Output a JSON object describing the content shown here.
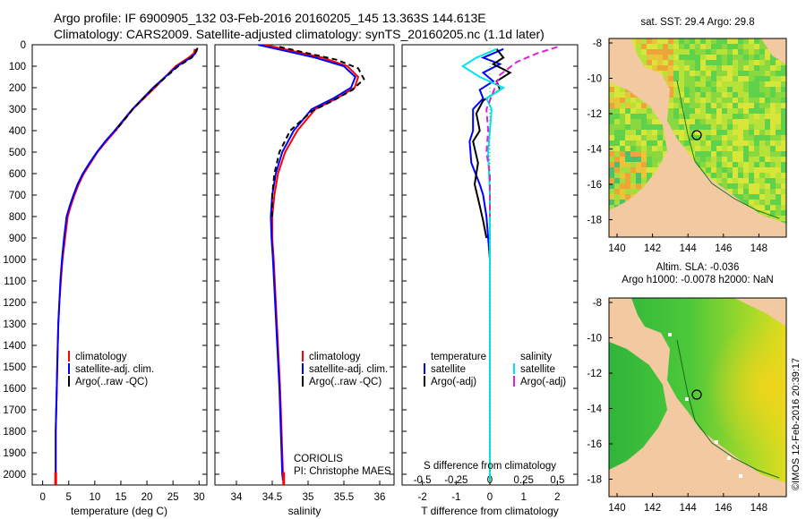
{
  "title": {
    "line1": "Argo profile: IF 6900905_132 03-Feb-2016 20160205_145 13.363S 144.613E",
    "line2": "Climatology: CARS2009. Satellite-adjusted climatology: synTS_20160205.nc (1.1d later)"
  },
  "depth_ticks": [
    0,
    100,
    200,
    300,
    400,
    500,
    600,
    700,
    800,
    900,
    1000,
    1100,
    1200,
    1300,
    1400,
    1500,
    1600,
    1700,
    1800,
    1900,
    2000
  ],
  "colors": {
    "climatology": "#ff0000",
    "satellite": "#0000ff",
    "argo": "#000000",
    "sat_salinity": "#00e5ee",
    "argo_adj_salinity": "#dd22dd"
  },
  "chart_data": [
    {
      "id": "temperature",
      "type": "line",
      "xlabel": "temperature (deg C)",
      "ylabel": "",
      "xlim": [
        -2,
        31.5
      ],
      "ylim": [
        2050,
        0
      ],
      "xticks": [
        0,
        5,
        10,
        15,
        20,
        25,
        30
      ],
      "legend": [
        "climatology",
        "satellite-adj. clim.",
        "Argo(..raw -QC)"
      ],
      "series": [
        {
          "name": "climatology",
          "color": "#ff0000",
          "dash": "",
          "x": [
            29.2,
            29.0,
            28.0,
            25.5,
            21.5,
            17.3,
            14.0,
            12.2,
            10.5,
            9.2,
            7.9,
            6.9,
            6.1,
            5.4,
            4.8,
            4.3,
            3.8,
            3.5,
            3.2,
            3.0,
            2.9,
            2.8,
            2.7,
            2.6,
            2.5,
            2.5
          ],
          "y": [
            20,
            40,
            60,
            100,
            200,
            300,
            400,
            450,
            500,
            550,
            600,
            650,
            700,
            750,
            800,
            900,
            1000,
            1100,
            1200,
            1300,
            1400,
            1500,
            1600,
            1700,
            1800,
            2000
          ]
        },
        {
          "name": "satellite-adj. clim.",
          "color": "#0000ff",
          "dash": "",
          "x": [
            29.5,
            29.3,
            28.4,
            25.8,
            21.2,
            17.2,
            13.8,
            12.0,
            10.4,
            9.0,
            7.7,
            6.7,
            5.9,
            5.2,
            4.6,
            4.1,
            3.7,
            3.4,
            3.2,
            3.0,
            2.9,
            2.8,
            2.7,
            2.6,
            2.5,
            2.5
          ],
          "y": [
            20,
            40,
            60,
            100,
            200,
            300,
            400,
            450,
            500,
            550,
            600,
            650,
            700,
            750,
            800,
            900,
            1000,
            1100,
            1200,
            1300,
            1400,
            1500,
            1600,
            1700,
            1800,
            2000
          ]
        },
        {
          "name": "Argo(..raw -QC)",
          "color": "#000000",
          "dash": "6,4",
          "x": [
            29.7,
            29.5,
            28.6,
            26.0,
            21.3,
            17.3,
            14.0
          ],
          "y": [
            15,
            30,
            60,
            100,
            200,
            300,
            400
          ]
        }
      ]
    },
    {
      "id": "salinity",
      "type": "line",
      "xlabel": "salinity",
      "ylabel": "",
      "xlim": [
        33.7,
        36.2
      ],
      "ylim": [
        2050,
        0
      ],
      "xticks": [
        34,
        34.5,
        35,
        35.5,
        36
      ],
      "legend": [
        "climatology",
        "satellite-adj. clim.",
        "Argo(..raw -QC)"
      ],
      "series": [
        {
          "name": "climatology",
          "color": "#ff0000",
          "dash": "",
          "x": [
            34.4,
            34.8,
            35.2,
            35.55,
            35.7,
            35.65,
            35.4,
            35.1,
            34.85,
            34.68,
            34.58,
            34.53,
            34.5,
            34.5,
            34.52,
            34.55,
            34.58,
            34.61,
            34.63,
            34.64,
            34.65,
            34.66
          ],
          "y": [
            0,
            30,
            60,
            100,
            150,
            200,
            250,
            300,
            400,
            500,
            600,
            700,
            800,
            900,
            1000,
            1200,
            1400,
            1600,
            1800,
            1900,
            2000,
            2030
          ]
        },
        {
          "name": "satellite-adj. clim.",
          "color": "#0000ff",
          "dash": "",
          "x": [
            34.3,
            34.7,
            35.1,
            35.5,
            35.66,
            35.6,
            35.35,
            35.05,
            34.8,
            34.64,
            34.55,
            34.5,
            34.48,
            34.49,
            34.51,
            34.54,
            34.57,
            34.6,
            34.62,
            34.63,
            34.64,
            34.65
          ],
          "y": [
            0,
            30,
            60,
            100,
            150,
            200,
            250,
            300,
            400,
            500,
            600,
            700,
            800,
            900,
            1000,
            1200,
            1400,
            1600,
            1800,
            1900,
            2000,
            2030
          ]
        },
        {
          "name": "Argo(..raw -QC)",
          "color": "#000000",
          "dash": "6,4",
          "x": [
            34.6,
            35.0,
            35.4,
            35.7,
            35.78,
            35.62,
            35.35,
            35.05,
            34.75,
            34.6,
            34.53,
            34.5,
            34.5
          ],
          "y": [
            10,
            40,
            70,
            110,
            160,
            210,
            260,
            310,
            400,
            500,
            600,
            700,
            800
          ]
        }
      ]
    },
    {
      "id": "difference",
      "type": "line",
      "xlabel": "T difference from climatology",
      "top_label": "S difference from climatology",
      "xlim": [
        -2.6,
        2.6
      ],
      "ylim": [
        2050,
        0
      ],
      "xticks": [
        -2,
        -1,
        0,
        1,
        2
      ],
      "sticks": [
        "-0.5",
        "-0.25",
        "0",
        "0.25",
        "0.5"
      ],
      "legend": [
        "temperature",
        "satellite",
        "Argo(-adj)",
        "salinity",
        "satellite",
        "Argo(-adj)"
      ],
      "series": [
        {
          "name": "temperature satellite",
          "color": "#0000ff",
          "dash": "",
          "x": [
            0.4,
            -0.2,
            0.3,
            -0.2,
            0.1,
            -0.3,
            -0.2,
            -0.5,
            -0.5,
            -0.6,
            -0.55,
            -0.3,
            -0.2,
            -0.1,
            -0.05,
            0,
            0,
            0,
            0,
            0,
            0
          ],
          "y": [
            20,
            60,
            90,
            130,
            170,
            210,
            250,
            300,
            400,
            450,
            550,
            650,
            700,
            800,
            900,
            1000,
            1200,
            1400,
            1600,
            1800,
            2000
          ]
        },
        {
          "name": "temperature Argo(-adj)",
          "color": "#000000",
          "dash": "",
          "x": [
            0.2,
            0.4,
            0.1,
            0.6,
            0.2,
            0.3,
            -0.2,
            -0.4,
            -0.3,
            -0.5,
            -0.35,
            -0.45,
            -0.3,
            -0.2,
            -0.1
          ],
          "y": [
            20,
            60,
            90,
            130,
            170,
            210,
            260,
            320,
            400,
            450,
            550,
            650,
            750,
            820,
            900
          ]
        },
        {
          "name": "salinity satellite",
          "color": "#00e5ee",
          "dash": "",
          "x": [
            0.2,
            -0.4,
            -0.8,
            -0.3,
            0.4,
            -0.1,
            0.05,
            0,
            -0.05,
            0,
            0,
            0,
            0,
            0,
            0,
            0
          ],
          "y": [
            20,
            60,
            100,
            150,
            200,
            250,
            300,
            400,
            500,
            700,
            900,
            1100,
            1400,
            1700,
            1900,
            2030
          ]
        },
        {
          "name": "salinity Argo(-adj)",
          "color": "#dd22dd",
          "dash": "7,4",
          "x": [
            2.0,
            1.4,
            0.8,
            0.3,
            0.1,
            -0.1,
            -0.05,
            -0.1,
            0,
            0,
            0
          ],
          "y": [
            10,
            40,
            80,
            140,
            220,
            300,
            400,
            500,
            600,
            700,
            800
          ]
        }
      ]
    }
  ],
  "sst_map": {
    "title": "sat. SST: 29.4 Argo: 29.8",
    "yticks": [
      "-8",
      "-10",
      "-12",
      "-14",
      "-16",
      "-18"
    ],
    "xticks": [
      "140",
      "142",
      "144",
      "146",
      "148"
    ],
    "argo_lon": 144.613,
    "argo_lat": -13.363
  },
  "sla_map": {
    "title1": "Altim. SLA: -0.036",
    "title2": "Argo h1000: -0.0078 h2000: NaN",
    "yticks": [
      "-8",
      "-10",
      "-12",
      "-14",
      "-16",
      "-18"
    ],
    "xticks": [
      "140",
      "142",
      "144",
      "146",
      "148"
    ],
    "argo_lon": 144.613,
    "argo_lat": -13.363
  },
  "credits": {
    "center": "CORIOLIS",
    "pi": "PI: Christophe MAES",
    "stamp": "©IMOS 12-Feb-2016 20:39:17"
  }
}
